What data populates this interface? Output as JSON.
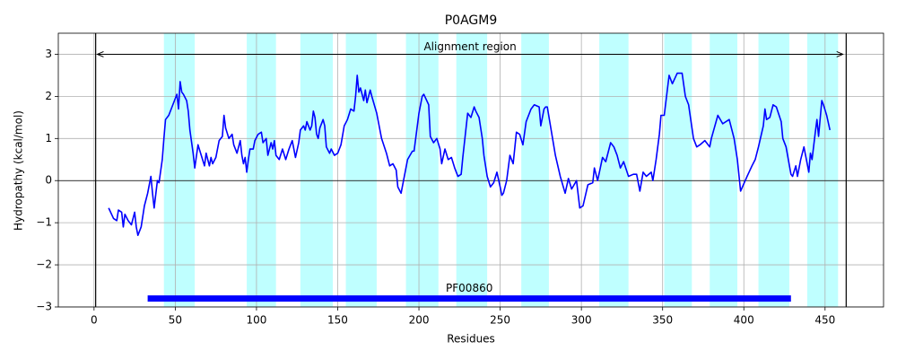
{
  "chart_data": {
    "type": "line",
    "title": "P0AGM9",
    "xlabel": "Residues",
    "ylabel": "Hydropathy (kcal/mol)",
    "xlim": [
      -22,
      486
    ],
    "ylim": [
      -3,
      3.5
    ],
    "xticks": [
      0,
      50,
      100,
      150,
      200,
      250,
      300,
      350,
      400,
      450
    ],
    "yticks": [
      {
        "value": -3,
        "label": "−3"
      },
      {
        "value": -2,
        "label": "−2"
      },
      {
        "value": -1,
        "label": "−1"
      },
      0,
      1,
      2,
      3
    ],
    "grid": true,
    "color": "#0000ff",
    "hline": 0,
    "spans": [
      [
        43,
        62
      ],
      [
        94,
        112
      ],
      [
        127,
        147
      ],
      [
        155,
        174
      ],
      [
        192,
        212
      ],
      [
        223,
        242
      ],
      [
        263,
        280
      ],
      [
        311,
        329
      ],
      [
        351,
        368
      ],
      [
        379,
        396
      ],
      [
        409,
        428
      ],
      [
        439,
        458
      ]
    ],
    "span_color": "#00ffff",
    "vlines": [
      1,
      463
    ],
    "annotation": {
      "text": "Alignment region",
      "x": [
        2,
        461
      ],
      "y": 3
    },
    "domains": [
      {
        "label": "PF00860",
        "start": 33,
        "end": 429,
        "y": -2.8,
        "color": "#0000ff"
      }
    ],
    "x": [
      9,
      12,
      14,
      15,
      17,
      18,
      19,
      21,
      23,
      25,
      26,
      27,
      29,
      31,
      33,
      35,
      36,
      37,
      39,
      40,
      42,
      43,
      44,
      46,
      48,
      50,
      51,
      52,
      53,
      54,
      55,
      57,
      58,
      59,
      61,
      62,
      64,
      66,
      68,
      69,
      71,
      72,
      73,
      75,
      77,
      79,
      80,
      81,
      83,
      85,
      86,
      88,
      90,
      91,
      92,
      93,
      94,
      95,
      96,
      98,
      99,
      101,
      103,
      104,
      106,
      107,
      109,
      110,
      111,
      112,
      114,
      116,
      118,
      120,
      122,
      124,
      126,
      127,
      129,
      130,
      131,
      133,
      134,
      135,
      136,
      137,
      138,
      139,
      141,
      142,
      143,
      145,
      146,
      148,
      150,
      152,
      154,
      156,
      158,
      160,
      161,
      162,
      163,
      164,
      166,
      167,
      168,
      170,
      171,
      174,
      177,
      180,
      182,
      184,
      186,
      187,
      189,
      191,
      193,
      196,
      197,
      200,
      202,
      203,
      206,
      207,
      209,
      211,
      213,
      214,
      216,
      218,
      220,
      222,
      224,
      226,
      227,
      229,
      230,
      232,
      234,
      235,
      237,
      239,
      240,
      242,
      244,
      246,
      248,
      250,
      251,
      252,
      254,
      256,
      258,
      260,
      262,
      264,
      266,
      269,
      271,
      274,
      275,
      277,
      278,
      279,
      284,
      287,
      290,
      292,
      294,
      297,
      299,
      301,
      304,
      307,
      308,
      310,
      313,
      315,
      318,
      320,
      322,
      324,
      326,
      329,
      332,
      334,
      336,
      338,
      340,
      343,
      344,
      346,
      348,
      349,
      351,
      354,
      356,
      359,
      362,
      364,
      366,
      369,
      371,
      373,
      376,
      379,
      380,
      384,
      387,
      391,
      394,
      396,
      398,
      402,
      405,
      407,
      409,
      412,
      413,
      414,
      416,
      418,
      420,
      423,
      424,
      426,
      429,
      430,
      432,
      433,
      435,
      437,
      438,
      440,
      441,
      442,
      444,
      445,
      446,
      448,
      449,
      451,
      453
    ],
    "values": [
      -0.65,
      -0.9,
      -0.95,
      -0.7,
      -0.75,
      -1.1,
      -0.8,
      -0.95,
      -1.05,
      -0.75,
      -1.1,
      -1.3,
      -1.1,
      -0.6,
      -0.3,
      0.1,
      -0.3,
      -0.65,
      0.0,
      -0.05,
      0.5,
      1.0,
      1.45,
      1.55,
      1.75,
      1.95,
      2.05,
      1.7,
      2.35,
      2.1,
      2.05,
      1.9,
      1.65,
      1.2,
      0.65,
      0.3,
      0.85,
      0.6,
      0.35,
      0.65,
      0.35,
      0.55,
      0.4,
      0.55,
      0.95,
      1.05,
      1.55,
      1.25,
      1.0,
      1.1,
      0.85,
      0.65,
      0.95,
      0.6,
      0.4,
      0.55,
      0.2,
      0.5,
      0.75,
      0.75,
      0.95,
      1.1,
      1.15,
      0.9,
      1.0,
      0.6,
      0.9,
      0.75,
      0.95,
      0.6,
      0.5,
      0.75,
      0.5,
      0.75,
      0.95,
      0.55,
      0.9,
      1.2,
      1.3,
      1.2,
      1.4,
      1.2,
      1.3,
      1.65,
      1.5,
      1.1,
      1.0,
      1.25,
      1.45,
      1.3,
      0.8,
      0.65,
      0.75,
      0.6,
      0.65,
      0.85,
      1.3,
      1.45,
      1.7,
      1.65,
      2.0,
      2.5,
      2.1,
      2.2,
      1.9,
      2.15,
      1.85,
      2.15,
      2.0,
      1.6,
      1.0,
      0.65,
      0.35,
      0.4,
      0.25,
      -0.15,
      -0.3,
      0.1,
      0.5,
      0.7,
      0.7,
      1.6,
      2.0,
      2.05,
      1.8,
      1.05,
      0.9,
      1.0,
      0.75,
      0.4,
      0.75,
      0.5,
      0.55,
      0.3,
      0.1,
      0.15,
      0.55,
      1.25,
      1.6,
      1.5,
      1.75,
      1.65,
      1.5,
      1.0,
      0.6,
      0.1,
      -0.15,
      -0.05,
      0.2,
      -0.15,
      -0.35,
      -0.3,
      0.0,
      0.6,
      0.4,
      1.15,
      1.1,
      0.85,
      1.4,
      1.7,
      1.8,
      1.75,
      1.3,
      1.7,
      1.75,
      1.75,
      0.6,
      0.1,
      -0.3,
      0.05,
      -0.2,
      0.0,
      -0.65,
      -0.6,
      -0.1,
      -0.05,
      0.3,
      0.0,
      0.55,
      0.45,
      0.9,
      0.8,
      0.6,
      0.3,
      0.45,
      0.1,
      0.15,
      0.15,
      -0.25,
      0.2,
      0.1,
      0.2,
      0.0,
      0.5,
      1.1,
      1.55,
      1.55,
      2.5,
      2.3,
      2.55,
      2.55,
      2.0,
      1.8,
      1.0,
      0.8,
      0.85,
      0.95,
      0.8,
      1.0,
      1.55,
      1.35,
      1.45,
      1.0,
      0.5,
      -0.25,
      0.1,
      0.35,
      0.5,
      0.8,
      1.3,
      1.7,
      1.45,
      1.5,
      1.8,
      1.75,
      1.4,
      1.0,
      0.8,
      0.15,
      0.1,
      0.35,
      0.1,
      0.5,
      0.8,
      0.6,
      0.2,
      0.65,
      0.5,
      1.15,
      1.45,
      1.05,
      1.9,
      1.8,
      1.55,
      1.2
    ]
  }
}
